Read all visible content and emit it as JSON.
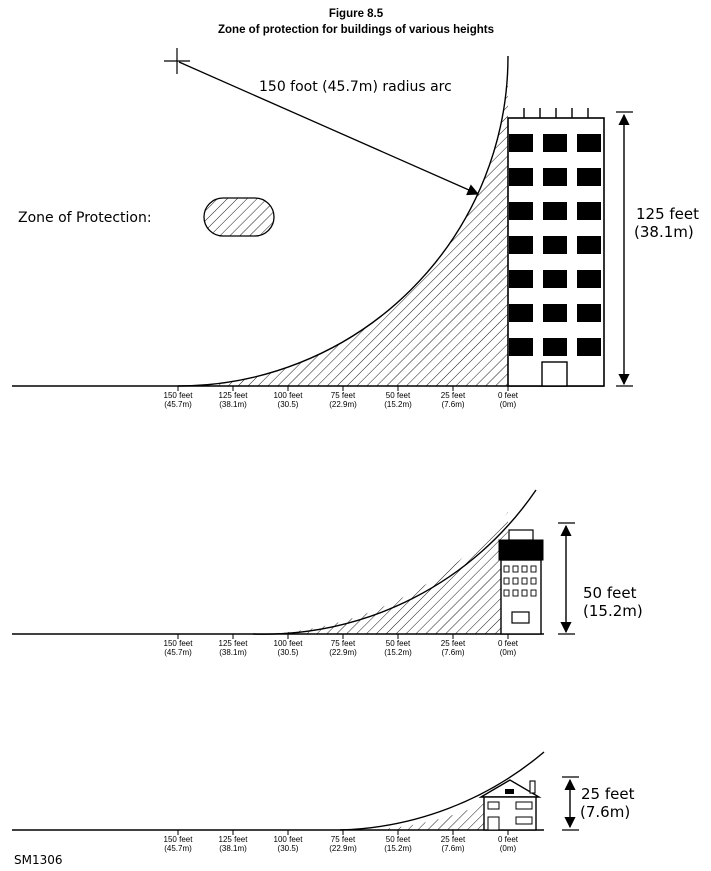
{
  "figure": {
    "number": "Figure 8.5",
    "title": "Zone of protection for buildings of various heights",
    "arc_label": "150 foot (45.7m) radius arc",
    "legend_label": "Zone of Protection:",
    "drawing_code": "SM1306"
  },
  "scale_labels": [
    {
      "feet": "150 feet",
      "metres": "(45.7m)",
      "distance_ft": 150
    },
    {
      "feet": "125 feet",
      "metres": "(38.1m)",
      "distance_ft": 125
    },
    {
      "feet": "100 feet",
      "metres": "(30.5)",
      "distance_ft": 100
    },
    {
      "feet": "75 feet",
      "metres": "(22.9m)",
      "distance_ft": 75
    },
    {
      "feet": "50 feet",
      "metres": "(15.2m)",
      "distance_ft": 50
    },
    {
      "feet": "25 feet",
      "metres": "(7.6m)",
      "distance_ft": 25
    },
    {
      "feet": "0 feet",
      "metres": "(0m)",
      "distance_ft": 0
    }
  ],
  "panels": [
    {
      "building": "tall building",
      "height_ft": 125,
      "height_label_ft": "125 feet",
      "height_label_m": "(38.1m)"
    },
    {
      "building": "mid-rise building",
      "height_ft": 50,
      "height_label_ft": "50 feet",
      "height_label_m": "(15.2m)"
    },
    {
      "building": "house",
      "height_ft": 25,
      "height_label_ft": "25 feet",
      "height_label_m": "(7.6m)"
    }
  ]
}
